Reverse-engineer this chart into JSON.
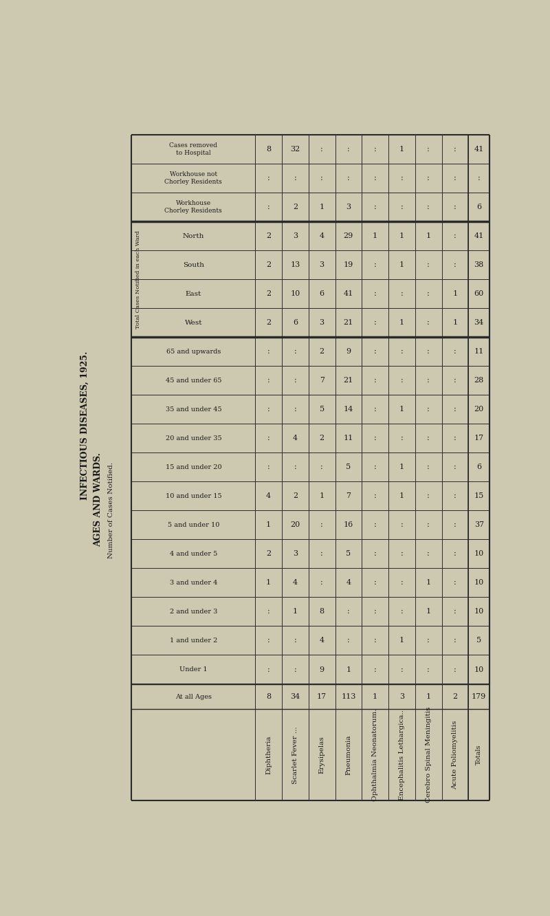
{
  "title_line1": "INFECTIOUS DISEASES, 1925.",
  "title_line2": "AGES AND WARDS.",
  "bg_color": "#cdc9b0",
  "text_color": "#1a1a1a",
  "diseases": [
    "Diphtheria",
    "Scarlet Fever ...",
    "Erysipelas",
    "Pneumonia",
    "Ophthalmia Neonatorum.",
    "Encephalitis Lethargica..",
    "Cerebro Spinal Meningitis",
    "Acute Poliomyelitis"
  ],
  "at_all_ages": [
    "8",
    "34",
    "17",
    "113",
    "1",
    "3",
    "1",
    "2"
  ],
  "at_all_ages_total": "179",
  "age_rows": [
    "Under 1",
    "1 and under 2",
    "2 and under 3",
    "3 and under 4",
    "4 and under 5",
    "5 and under 10",
    "10 and under 15",
    "15 and under 20",
    "20 and under 35",
    "35 and under 45",
    "45 and under 65",
    "65 and upwards"
  ],
  "age_data": [
    [
      ":",
      ":",
      "9",
      "1",
      ":",
      ":",
      ":"
    ],
    [
      ":",
      ":",
      "4",
      ":",
      ":",
      "1",
      ":"
    ],
    [
      ":",
      "1",
      "8",
      ":",
      ":",
      ":",
      "1"
    ],
    [
      "1",
      "4",
      ":",
      "4",
      ":",
      ":",
      "1"
    ],
    [
      "2",
      "3",
      ":",
      "5",
      ":",
      ":",
      ":"
    ],
    [
      "1",
      "20",
      ":",
      "16",
      ":",
      ":",
      ":"
    ],
    [
      "4",
      "2",
      "1",
      "7",
      ":",
      "1",
      ":"
    ],
    [
      ":",
      ":",
      ":",
      "5",
      ":",
      "1",
      ":"
    ],
    [
      ":",
      "4",
      "2",
      "11",
      ":",
      ":",
      ":"
    ],
    [
      ":",
      ":",
      "5",
      "14",
      ":",
      "1",
      ":"
    ],
    [
      ":",
      ":",
      "7",
      "21",
      ":",
      ":",
      ":"
    ],
    [
      ":",
      ":",
      "2",
      "9",
      ":",
      ":",
      ":"
    ]
  ],
  "age_totals": [
    "10",
    "5",
    "10",
    "10",
    "10",
    "37",
    "15",
    "6",
    "17",
    "20",
    "28",
    "11"
  ],
  "wards": [
    "North",
    "South",
    "East",
    "West"
  ],
  "ward_data": [
    [
      "2",
      "3",
      "4",
      "29",
      "1",
      "1",
      "1",
      ":"
    ],
    [
      "2",
      "13",
      "3",
      "19",
      ":",
      "1",
      ":",
      ":"
    ],
    [
      "2",
      "10",
      "6",
      "41",
      ":",
      ":",
      ":",
      "1"
    ],
    [
      "2",
      "6",
      "3",
      "21",
      ":",
      "1",
      ":",
      "1"
    ]
  ],
  "ward_totals": [
    "41",
    "38",
    "60",
    "34"
  ],
  "wh_chorley_label": "Workhouse\nChorley Residents",
  "wh_chorley_data": [
    ":",
    "2",
    "1",
    "3",
    ":",
    ":",
    ":",
    ":"
  ],
  "wh_chorley_total": "6",
  "wh_not_chorley_label": "Workhouse not\nChorley Residents",
  "wh_not_chorley_data": [
    ":",
    ":",
    ":",
    ":",
    ":",
    ":",
    ":",
    ":"
  ],
  "wh_not_chorley_total": ":",
  "cases_removed_label": "Cases removed\nto Hospital",
  "cases_removed_data": [
    "8",
    "32",
    ":",
    ":",
    ":",
    "1",
    ":",
    ":"
  ],
  "cases_removed_total": "41",
  "left_label1": "INFECTIOUS DISEASES, 1925.",
  "left_label2": "AGES AND WARDS.",
  "side_label_num": "Number of Cases Notified.",
  "side_label_ward": "Total Cases Notified in each Ward"
}
